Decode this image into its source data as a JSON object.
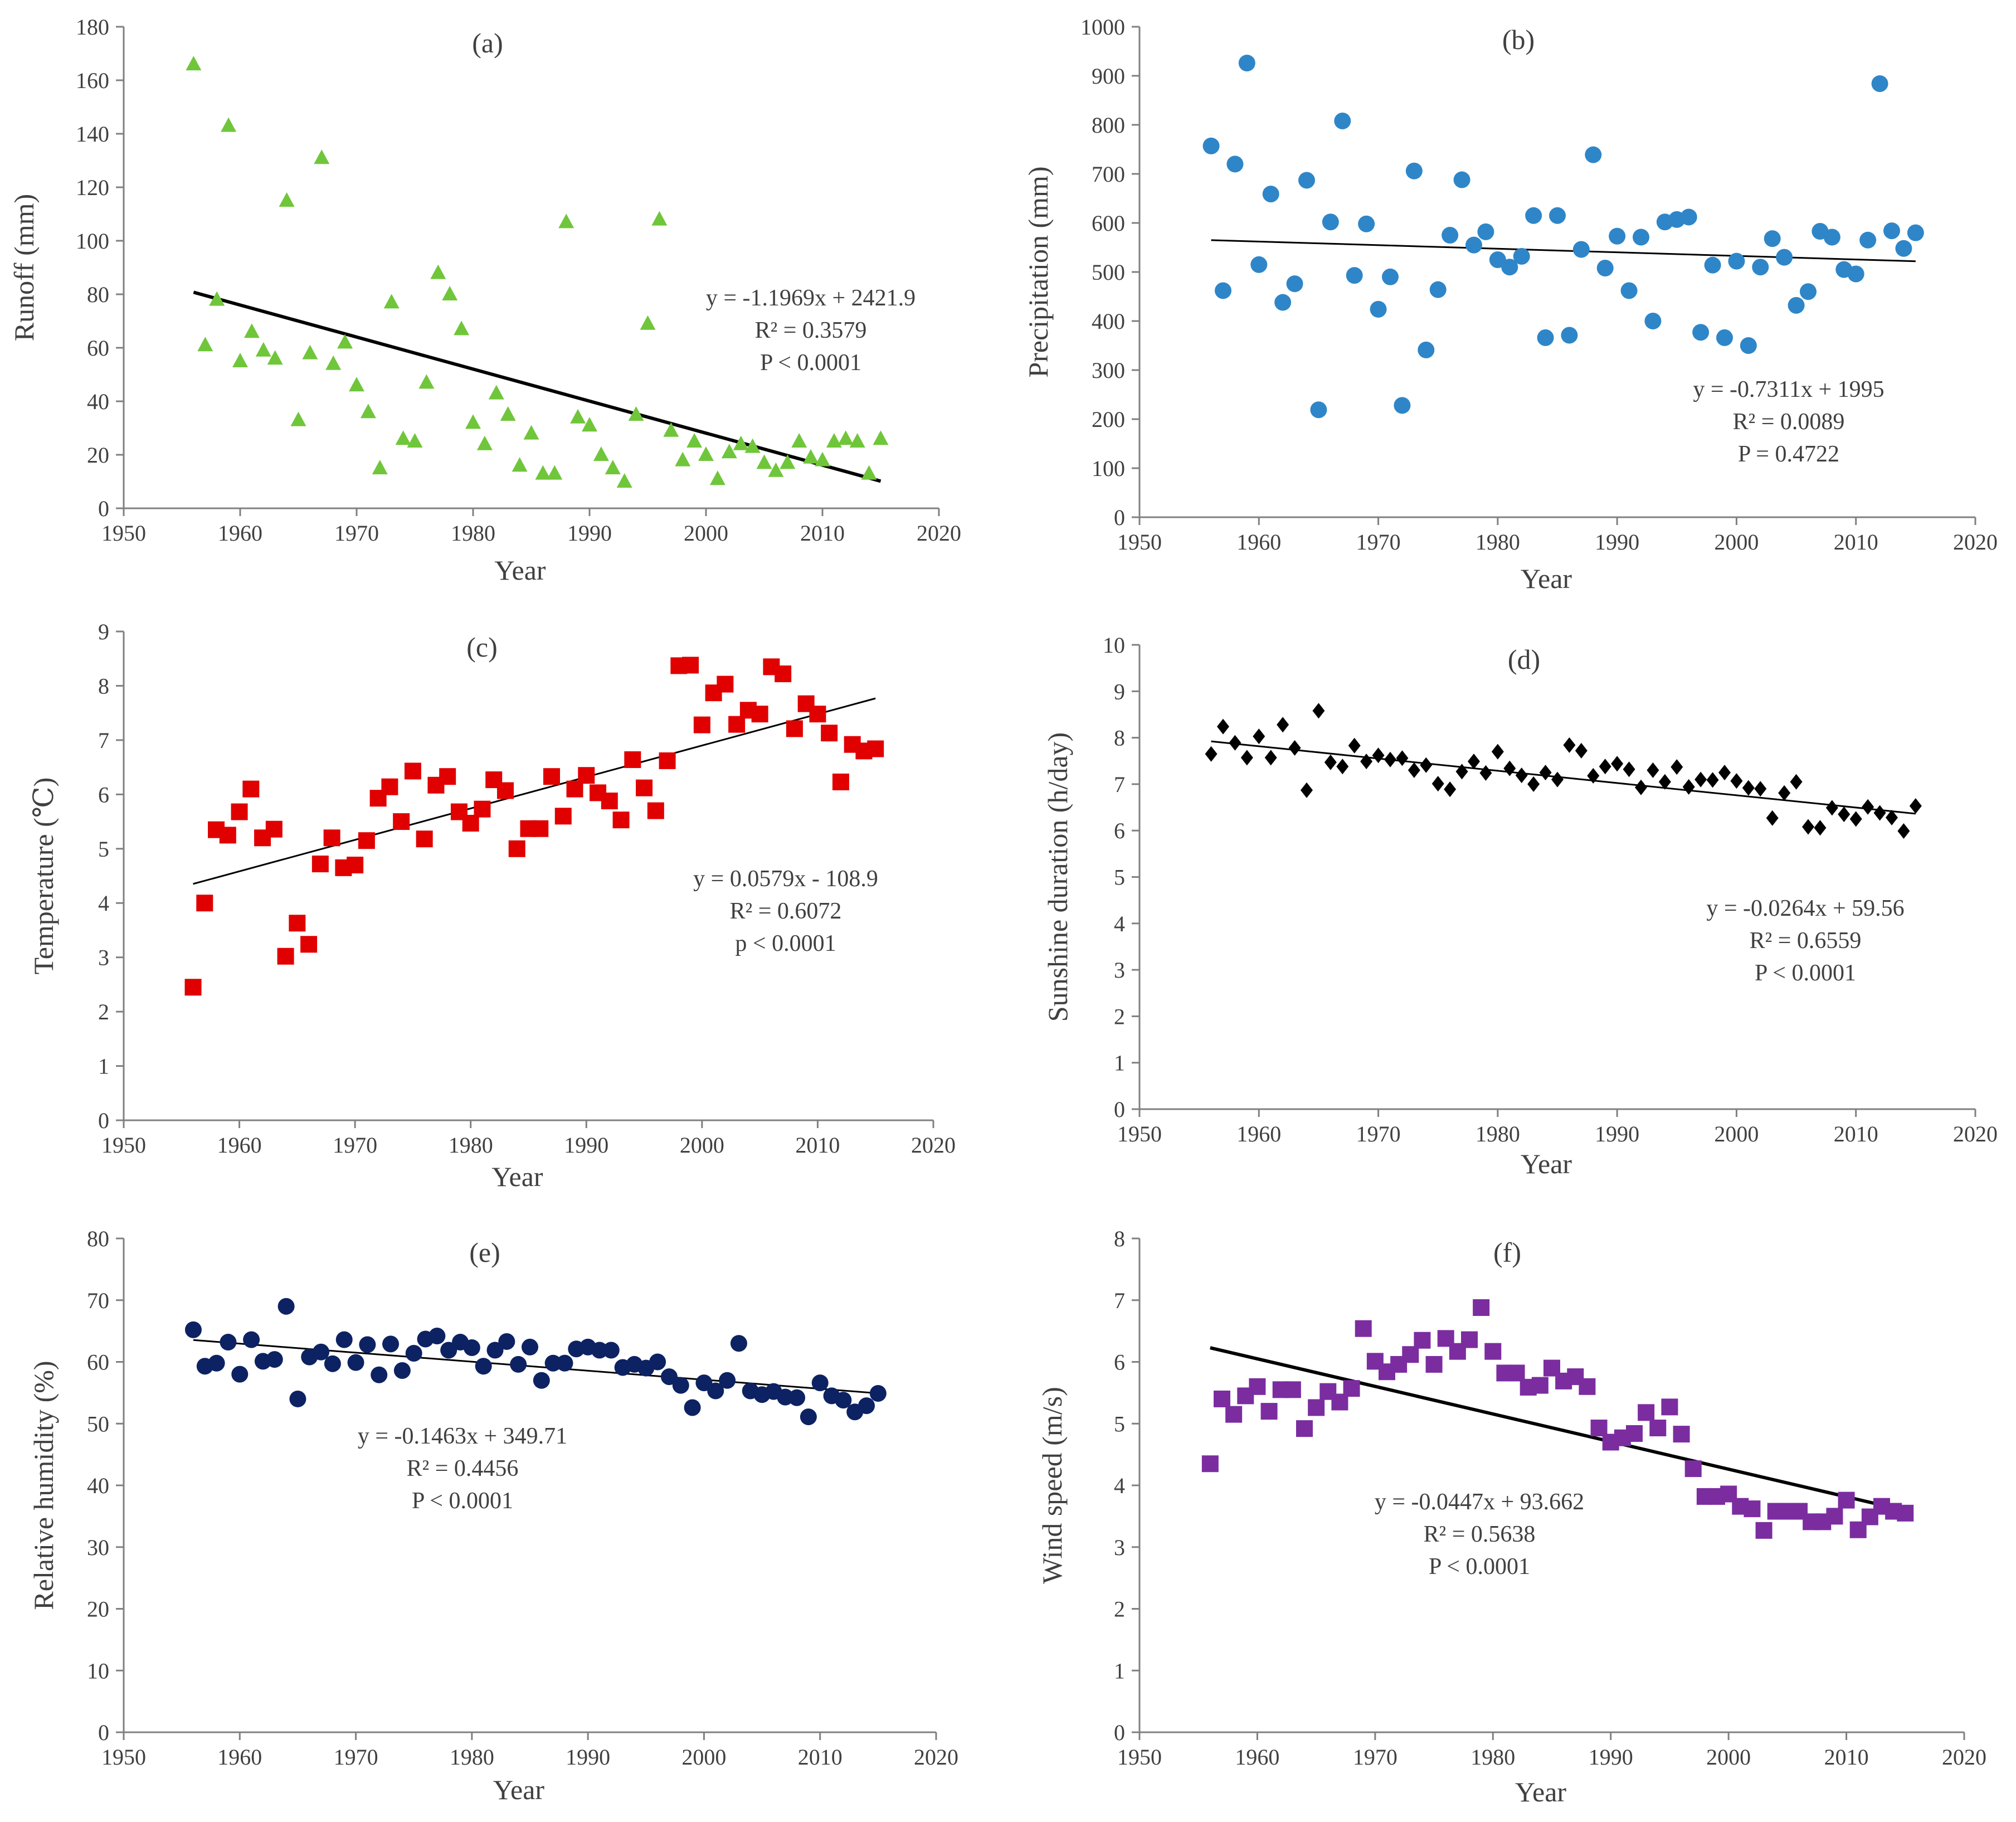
{
  "figure": {
    "xlabel": "Year"
  },
  "chart_data": [
    {
      "type": "scatter",
      "panel": "(a)",
      "ylabel": "Runoff (mm)",
      "marker": "triangle",
      "color": "#70C63A",
      "trend_stroke": 6,
      "xlim": [
        1950,
        2020
      ],
      "ylim": [
        0,
        180
      ],
      "xstep": 10,
      "ystep": 20,
      "x": [
        1956,
        1957,
        1958,
        1959,
        1960,
        1961,
        1962,
        1963,
        1964,
        1965,
        1966,
        1967,
        1968,
        1969,
        1970,
        1971,
        1972,
        1973,
        1974,
        1975,
        1976,
        1977,
        1978,
        1979,
        1980,
        1981,
        1982,
        1983,
        1984,
        1985,
        1986,
        1987,
        1988,
        1989,
        1990,
        1991,
        1992,
        1993,
        1994,
        1995,
        1996,
        1997,
        1998,
        1999,
        2000,
        2001,
        2002,
        2003,
        2004,
        2005,
        2006,
        2007,
        2008,
        2009,
        2010,
        2011,
        2012,
        2013,
        2014,
        2015
      ],
      "y": [
        166,
        61,
        78,
        143,
        55,
        66,
        59,
        56,
        115,
        33,
        58,
        131,
        54,
        62,
        46,
        36,
        15,
        77,
        26,
        25,
        47,
        88,
        80,
        67,
        32,
        24,
        43,
        35,
        16,
        28,
        13,
        13,
        107,
        34,
        31,
        20,
        15,
        10,
        35,
        69,
        108,
        29,
        18,
        25,
        20,
        11,
        21,
        24,
        23,
        17,
        14,
        17,
        25,
        19,
        18,
        25,
        26,
        25,
        13,
        26
      ],
      "trend": [
        -1.1969,
        2421.9
      ],
      "equation": "y = -1.1969x + 2421.9",
      "r2": "R² = 0.3579",
      "p": "P < 0.0001"
    },
    {
      "type": "scatter",
      "panel": "(b)",
      "ylabel": "Precipitation (mm)",
      "marker": "circle",
      "color": "#2E86C8",
      "trend_stroke": 3,
      "xlim": [
        1950,
        2020
      ],
      "ylim": [
        0,
        1000
      ],
      "xstep": 10,
      "ystep": 100,
      "x": [
        1956,
        1957,
        1958,
        1959,
        1960,
        1961,
        1962,
        1963,
        1964,
        1965,
        1966,
        1967,
        1968,
        1969,
        1970,
        1971,
        1972,
        1973,
        1974,
        1975,
        1976,
        1977,
        1978,
        1979,
        1980,
        1981,
        1982,
        1983,
        1984,
        1985,
        1986,
        1987,
        1988,
        1989,
        1990,
        1991,
        1992,
        1993,
        1994,
        1995,
        1996,
        1997,
        1998,
        1999,
        2000,
        2001,
        2002,
        2003,
        2004,
        2005,
        2006,
        2007,
        2008,
        2009,
        2010,
        2011,
        2012,
        2013,
        2014,
        2015
      ],
      "y": [
        757,
        462,
        720,
        926,
        515,
        659,
        438,
        476,
        687,
        219,
        602,
        808,
        493,
        598,
        424,
        490,
        228,
        706,
        341,
        464,
        575,
        688,
        555,
        582,
        525,
        510,
        532,
        615,
        366,
        615,
        371,
        546,
        739,
        508,
        573,
        462,
        571,
        400,
        602,
        607,
        612,
        377,
        514,
        366,
        522,
        350,
        510,
        568,
        530,
        432,
        460,
        583,
        571,
        505,
        496,
        565,
        884,
        584,
        548,
        580
      ],
      "trend": [
        -0.7311,
        1995
      ],
      "equation": "y = -0.7311x + 1995",
      "r2": "R² = 0.0089",
      "p": "P = 0.4722"
    },
    {
      "type": "scatter",
      "panel": "(c)",
      "ylabel": "Temperature (℃)",
      "marker": "square",
      "color": "#E00000",
      "trend_stroke": 3,
      "xlim": [
        1950,
        2020
      ],
      "ylim": [
        0,
        9
      ],
      "xstep": 10,
      "ystep": 1,
      "x": [
        1956,
        1957,
        1958,
        1959,
        1960,
        1961,
        1962,
        1963,
        1964,
        1965,
        1966,
        1967,
        1968,
        1969,
        1970,
        1971,
        1972,
        1973,
        1974,
        1975,
        1976,
        1977,
        1978,
        1979,
        1980,
        1981,
        1982,
        1983,
        1984,
        1985,
        1986,
        1987,
        1988,
        1989,
        1990,
        1991,
        1992,
        1993,
        1994,
        1995,
        1996,
        1997,
        1998,
        1999,
        2000,
        2001,
        2002,
        2003,
        2004,
        2005,
        2006,
        2007,
        2008,
        2009,
        2010,
        2011,
        2012,
        2013,
        2014,
        2015
      ],
      "y": [
        2.45,
        4.0,
        5.35,
        5.25,
        5.68,
        6.1,
        5.2,
        5.36,
        3.02,
        3.63,
        3.24,
        4.72,
        5.2,
        4.65,
        4.7,
        5.15,
        5.93,
        6.14,
        5.5,
        6.43,
        5.18,
        6.17,
        6.33,
        5.68,
        5.47,
        5.73,
        6.27,
        6.07,
        5.0,
        5.37,
        5.37,
        6.33,
        5.6,
        6.1,
        6.35,
        6.03,
        5.88,
        5.53,
        6.64,
        6.12,
        5.7,
        6.62,
        8.37,
        8.38,
        7.28,
        7.87,
        8.03,
        7.29,
        7.55,
        7.48,
        8.35,
        8.22,
        7.21,
        7.67,
        7.48,
        7.13,
        6.23,
        6.92,
        6.8,
        6.84
      ],
      "trend": [
        0.0579,
        -108.9
      ],
      "equation": "y = 0.0579x - 108.9",
      "r2": "R² = 0.6072",
      "p": "p < 0.0001"
    },
    {
      "type": "scatter",
      "panel": "(d)",
      "ylabel": "Sunshine duration (h/day)",
      "marker": "diamond",
      "color": "#000000",
      "trend_stroke": 3,
      "xlim": [
        1950,
        2020
      ],
      "ylim": [
        0,
        10
      ],
      "xstep": 10,
      "ystep": 1,
      "x": [
        1956,
        1957,
        1958,
        1959,
        1960,
        1961,
        1962,
        1963,
        1964,
        1965,
        1966,
        1967,
        1968,
        1969,
        1970,
        1971,
        1972,
        1973,
        1974,
        1975,
        1976,
        1977,
        1978,
        1979,
        1980,
        1981,
        1982,
        1983,
        1984,
        1985,
        1986,
        1987,
        1988,
        1989,
        1990,
        1991,
        1992,
        1993,
        1994,
        1995,
        1996,
        1997,
        1998,
        1999,
        2000,
        2001,
        2002,
        2003,
        2004,
        2005,
        2006,
        2007,
        2008,
        2009,
        2010,
        2011,
        2012,
        2013,
        2014,
        2015
      ],
      "y": [
        7.65,
        8.24,
        7.89,
        7.57,
        8.03,
        7.57,
        8.28,
        7.78,
        6.87,
        8.58,
        7.47,
        7.38,
        7.83,
        7.49,
        7.62,
        7.53,
        7.56,
        7.3,
        7.41,
        7.01,
        6.89,
        7.27,
        7.49,
        7.24,
        7.7,
        7.34,
        7.19,
        7.0,
        7.25,
        7.1,
        7.84,
        7.72,
        7.18,
        7.38,
        7.44,
        7.32,
        6.93,
        7.3,
        7.05,
        7.37,
        6.94,
        7.1,
        7.09,
        7.25,
        7.07,
        6.92,
        6.9,
        6.27,
        6.81,
        7.05,
        6.08,
        6.06,
        6.49,
        6.35,
        6.25,
        6.51,
        6.38,
        6.28,
        5.99,
        6.53
      ],
      "trend": [
        -0.0264,
        59.56
      ],
      "equation": "y = -0.0264x + 59.56",
      "r2": "R² = 0.6559",
      "p": "P < 0.0001"
    },
    {
      "type": "scatter",
      "panel": "(e)",
      "ylabel": "Relative humidity (%)",
      "marker": "circle",
      "color": "#0D2262",
      "trend_stroke": 3,
      "xlim": [
        1950,
        2020
      ],
      "ylim": [
        0,
        80
      ],
      "xstep": 10,
      "ystep": 10,
      "x": [
        1956,
        1957,
        1958,
        1959,
        1960,
        1961,
        1962,
        1963,
        1964,
        1965,
        1966,
        1967,
        1968,
        1969,
        1970,
        1971,
        1972,
        1973,
        1974,
        1975,
        1976,
        1977,
        1978,
        1979,
        1980,
        1981,
        1982,
        1983,
        1984,
        1985,
        1986,
        1987,
        1988,
        1989,
        1990,
        1991,
        1992,
        1993,
        1994,
        1995,
        1996,
        1997,
        1998,
        1999,
        2000,
        2001,
        2002,
        2003,
        2004,
        2005,
        2006,
        2007,
        2008,
        2009,
        2010,
        2011,
        2012,
        2013,
        2014,
        2015
      ],
      "y": [
        65.2,
        59.3,
        59.8,
        63.2,
        58.0,
        63.6,
        60.1,
        60.4,
        69.0,
        54.0,
        60.8,
        61.6,
        59.7,
        63.6,
        59.9,
        62.8,
        57.9,
        62.9,
        58.6,
        61.4,
        63.7,
        64.2,
        61.9,
        63.2,
        62.3,
        59.3,
        61.9,
        63.3,
        59.6,
        62.4,
        57.0,
        59.8,
        59.8,
        62.1,
        62.4,
        61.9,
        61.9,
        59.1,
        59.6,
        59.0,
        60.0,
        57.6,
        56.2,
        52.6,
        56.6,
        55.3,
        57.0,
        63.0,
        55.3,
        54.7,
        55.2,
        54.3,
        54.2,
        51.1,
        56.6,
        54.5,
        53.8,
        51.9,
        52.9,
        54.9
      ],
      "trend": [
        -0.1463,
        349.71
      ],
      "equation": "y = -0.1463x + 349.71",
      "r2": "R² = 0.4456",
      "p": "P < 0.0001"
    },
    {
      "type": "scatter",
      "panel": "(f)",
      "ylabel": "Wind speed (m/s)",
      "marker": "square",
      "color": "#7B2DA0",
      "trend_stroke": 6,
      "xlim": [
        1950,
        2020
      ],
      "ylim": [
        0,
        8
      ],
      "xstep": 10,
      "ystep": 1,
      "x": [
        1956,
        1957,
        1958,
        1959,
        1960,
        1961,
        1962,
        1963,
        1964,
        1965,
        1966,
        1967,
        1968,
        1969,
        1970,
        1971,
        1972,
        1973,
        1974,
        1975,
        1976,
        1977,
        1978,
        1979,
        1980,
        1981,
        1982,
        1983,
        1984,
        1985,
        1986,
        1987,
        1988,
        1989,
        1990,
        1991,
        1992,
        1993,
        1994,
        1995,
        1996,
        1997,
        1998,
        1999,
        2000,
        2001,
        2002,
        2003,
        2004,
        2005,
        2006,
        2007,
        2008,
        2009,
        2010,
        2011,
        2012,
        2013,
        2014,
        2015
      ],
      "y": [
        4.35,
        5.4,
        5.15,
        5.45,
        5.6,
        5.2,
        5.55,
        5.55,
        4.92,
        5.26,
        5.52,
        5.35,
        5.57,
        6.54,
        6.01,
        5.84,
        5.96,
        6.12,
        6.35,
        5.96,
        6.38,
        6.17,
        6.36,
        6.88,
        6.17,
        5.82,
        5.82,
        5.59,
        5.62,
        5.9,
        5.69,
        5.76,
        5.6,
        4.93,
        4.7,
        4.77,
        4.84,
        5.18,
        4.93,
        5.27,
        4.83,
        4.27,
        3.82,
        3.82,
        3.86,
        3.66,
        3.62,
        3.27,
        3.58,
        3.58,
        3.58,
        3.41,
        3.41,
        3.5,
        3.76,
        3.28,
        3.49,
        3.66,
        3.58,
        3.55
      ],
      "trend": [
        -0.0447,
        93.662
      ],
      "equation": "y = -0.0447x + 93.662",
      "r2": "R² = 0.5638",
      "p": "P < 0.0001"
    }
  ]
}
